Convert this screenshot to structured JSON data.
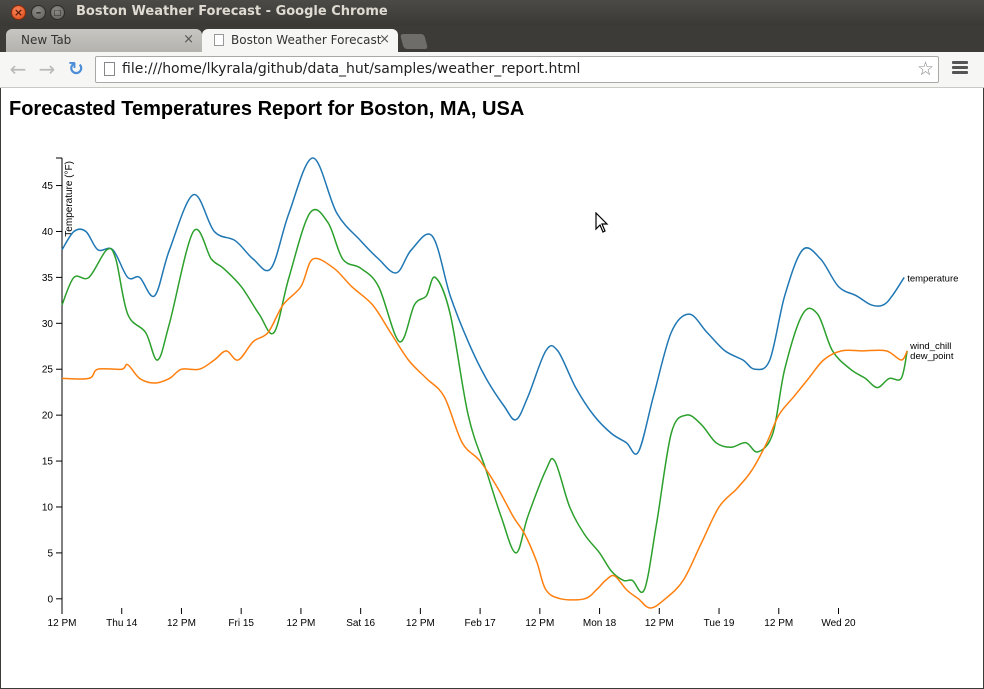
{
  "window": {
    "title": "Boston Weather Forecast - Google Chrome",
    "close_glyph": "×",
    "min_glyph": "–",
    "max_glyph": "□"
  },
  "tabs": [
    {
      "label": "New Tab",
      "close": "×"
    },
    {
      "label": "Boston Weather Forecast",
      "close": "×"
    }
  ],
  "toolbar": {
    "back_glyph": "←",
    "forward_glyph": "→",
    "reload_glyph": "↻",
    "url": "file:///home/lkyrala/github/data_hut/samples/weather_report.html",
    "star_glyph": "☆"
  },
  "page": {
    "heading": "Forecasted Temperatures Report for Boston, MA, USA"
  },
  "chart_data": {
    "type": "line",
    "title": "",
    "xlabel": "",
    "ylabel": "Temperature (°F)",
    "ylim": [
      -1,
      48
    ],
    "xlim": [
      0,
      15
    ],
    "y_ticks": [
      0,
      5,
      10,
      15,
      20,
      25,
      30,
      35,
      40,
      45
    ],
    "x_ticks": [
      {
        "x": 0,
        "label": "12 PM"
      },
      {
        "x": 1,
        "label": "Thu 14"
      },
      {
        "x": 2,
        "label": "12 PM"
      },
      {
        "x": 3,
        "label": "Fri 15"
      },
      {
        "x": 4,
        "label": "12 PM"
      },
      {
        "x": 5,
        "label": "Sat 16"
      },
      {
        "x": 6,
        "label": "12 PM"
      },
      {
        "x": 7,
        "label": "Feb 17"
      },
      {
        "x": 8,
        "label": "12 PM"
      },
      {
        "x": 9,
        "label": "Mon 18"
      },
      {
        "x": 10,
        "label": "12 PM"
      },
      {
        "x": 11,
        "label": "Tue 19"
      },
      {
        "x": 12,
        "label": "12 PM"
      },
      {
        "x": 13,
        "label": "Wed 20"
      }
    ],
    "x_unit_note": "x measured in half-days from Wed Feb 13, 12 PM",
    "grid": false,
    "legend": "end-of-line labels",
    "series": [
      {
        "name": "temperature",
        "color": "#1f77b4",
        "points": [
          [
            0,
            38
          ],
          [
            0.2,
            40
          ],
          [
            0.4,
            40
          ],
          [
            0.6,
            38
          ],
          [
            0.85,
            38
          ],
          [
            1.1,
            35
          ],
          [
            1.3,
            35
          ],
          [
            1.55,
            33
          ],
          [
            1.8,
            38
          ],
          [
            2.2,
            44
          ],
          [
            2.55,
            40
          ],
          [
            2.9,
            39
          ],
          [
            3.2,
            37
          ],
          [
            3.5,
            36
          ],
          [
            3.8,
            42
          ],
          [
            4.2,
            48
          ],
          [
            4.6,
            42
          ],
          [
            5.0,
            39
          ],
          [
            5.3,
            37
          ],
          [
            5.6,
            35.5
          ],
          [
            5.85,
            38
          ],
          [
            6.2,
            39.5
          ],
          [
            6.5,
            33
          ],
          [
            6.8,
            28
          ],
          [
            7.1,
            24
          ],
          [
            7.4,
            21
          ],
          [
            7.6,
            19.5
          ],
          [
            7.8,
            22
          ],
          [
            8.1,
            27
          ],
          [
            8.3,
            27
          ],
          [
            8.6,
            23
          ],
          [
            8.9,
            20
          ],
          [
            9.2,
            18
          ],
          [
            9.45,
            17
          ],
          [
            9.65,
            16
          ],
          [
            9.9,
            22
          ],
          [
            10.2,
            29
          ],
          [
            10.5,
            31
          ],
          [
            10.8,
            29
          ],
          [
            11.1,
            27
          ],
          [
            11.4,
            26
          ],
          [
            11.6,
            25
          ],
          [
            11.85,
            26
          ],
          [
            12.1,
            33
          ],
          [
            12.4,
            38
          ],
          [
            12.7,
            37
          ],
          [
            13.0,
            34
          ],
          [
            13.3,
            33
          ],
          [
            13.55,
            32
          ],
          [
            13.75,
            32
          ],
          [
            13.9,
            33
          ],
          [
            14.1,
            35
          ]
        ]
      },
      {
        "name": "wind_chill",
        "color": "#2ca02c",
        "points": [
          [
            0,
            32
          ],
          [
            0.2,
            35
          ],
          [
            0.45,
            35
          ],
          [
            0.75,
            38
          ],
          [
            0.9,
            37
          ],
          [
            1.1,
            31
          ],
          [
            1.4,
            29
          ],
          [
            1.6,
            26
          ],
          [
            1.8,
            30
          ],
          [
            2.2,
            40
          ],
          [
            2.5,
            37
          ],
          [
            2.7,
            36
          ],
          [
            3.0,
            34
          ],
          [
            3.3,
            31
          ],
          [
            3.55,
            29
          ],
          [
            3.8,
            35
          ],
          [
            4.15,
            42
          ],
          [
            4.45,
            41
          ],
          [
            4.7,
            37
          ],
          [
            5.0,
            36
          ],
          [
            5.3,
            34
          ],
          [
            5.65,
            28
          ],
          [
            5.9,
            32
          ],
          [
            6.1,
            33
          ],
          [
            6.25,
            35
          ],
          [
            6.5,
            31
          ],
          [
            6.8,
            20
          ],
          [
            7.1,
            14
          ],
          [
            7.35,
            9
          ],
          [
            7.6,
            5
          ],
          [
            7.8,
            9
          ],
          [
            8.1,
            14
          ],
          [
            8.25,
            15
          ],
          [
            8.5,
            10
          ],
          [
            8.75,
            7
          ],
          [
            9.0,
            5
          ],
          [
            9.2,
            3
          ],
          [
            9.4,
            2
          ],
          [
            9.55,
            2
          ],
          [
            9.75,
            1
          ],
          [
            9.95,
            8
          ],
          [
            10.2,
            18
          ],
          [
            10.45,
            20
          ],
          [
            10.7,
            19
          ],
          [
            10.95,
            17
          ],
          [
            11.2,
            16.5
          ],
          [
            11.45,
            17
          ],
          [
            11.65,
            16
          ],
          [
            11.9,
            18
          ],
          [
            12.1,
            25
          ],
          [
            12.4,
            31
          ],
          [
            12.65,
            31
          ],
          [
            12.9,
            27
          ],
          [
            13.2,
            25
          ],
          [
            13.45,
            24
          ],
          [
            13.65,
            23
          ],
          [
            13.85,
            24
          ],
          [
            14.05,
            24
          ],
          [
            14.15,
            27
          ]
        ]
      },
      {
        "name": "dew_point",
        "color": "#ff7f0e",
        "points": [
          [
            0,
            24
          ],
          [
            0.45,
            24
          ],
          [
            0.6,
            25
          ],
          [
            1.0,
            25
          ],
          [
            1.1,
            25.5
          ],
          [
            1.3,
            24
          ],
          [
            1.55,
            23.5
          ],
          [
            1.8,
            24
          ],
          [
            2.0,
            25
          ],
          [
            2.3,
            25
          ],
          [
            2.55,
            26
          ],
          [
            2.75,
            27
          ],
          [
            2.95,
            26
          ],
          [
            3.2,
            28
          ],
          [
            3.45,
            29
          ],
          [
            3.7,
            32
          ],
          [
            4.0,
            34
          ],
          [
            4.2,
            37
          ],
          [
            4.55,
            36
          ],
          [
            4.85,
            34
          ],
          [
            5.2,
            32
          ],
          [
            5.5,
            29
          ],
          [
            5.8,
            26
          ],
          [
            6.1,
            24
          ],
          [
            6.4,
            22
          ],
          [
            6.7,
            17
          ],
          [
            7.0,
            15
          ],
          [
            7.3,
            12
          ],
          [
            7.55,
            9
          ],
          [
            7.75,
            7
          ],
          [
            7.95,
            4
          ],
          [
            8.1,
            1
          ],
          [
            8.35,
            0
          ],
          [
            8.75,
            0
          ],
          [
            8.95,
            1
          ],
          [
            9.1,
            2
          ],
          [
            9.25,
            2.5
          ],
          [
            9.45,
            1
          ],
          [
            9.65,
            0
          ],
          [
            9.85,
            -1
          ],
          [
            10.1,
            0
          ],
          [
            10.4,
            2
          ],
          [
            10.7,
            6
          ],
          [
            11.0,
            10
          ],
          [
            11.3,
            12
          ],
          [
            11.55,
            14
          ],
          [
            11.8,
            17
          ],
          [
            12.0,
            20
          ],
          [
            12.25,
            22
          ],
          [
            12.5,
            24
          ],
          [
            12.75,
            26
          ],
          [
            13.05,
            27
          ],
          [
            13.4,
            27
          ],
          [
            13.8,
            27
          ],
          [
            14.05,
            26
          ],
          [
            14.15,
            27
          ]
        ]
      }
    ]
  }
}
